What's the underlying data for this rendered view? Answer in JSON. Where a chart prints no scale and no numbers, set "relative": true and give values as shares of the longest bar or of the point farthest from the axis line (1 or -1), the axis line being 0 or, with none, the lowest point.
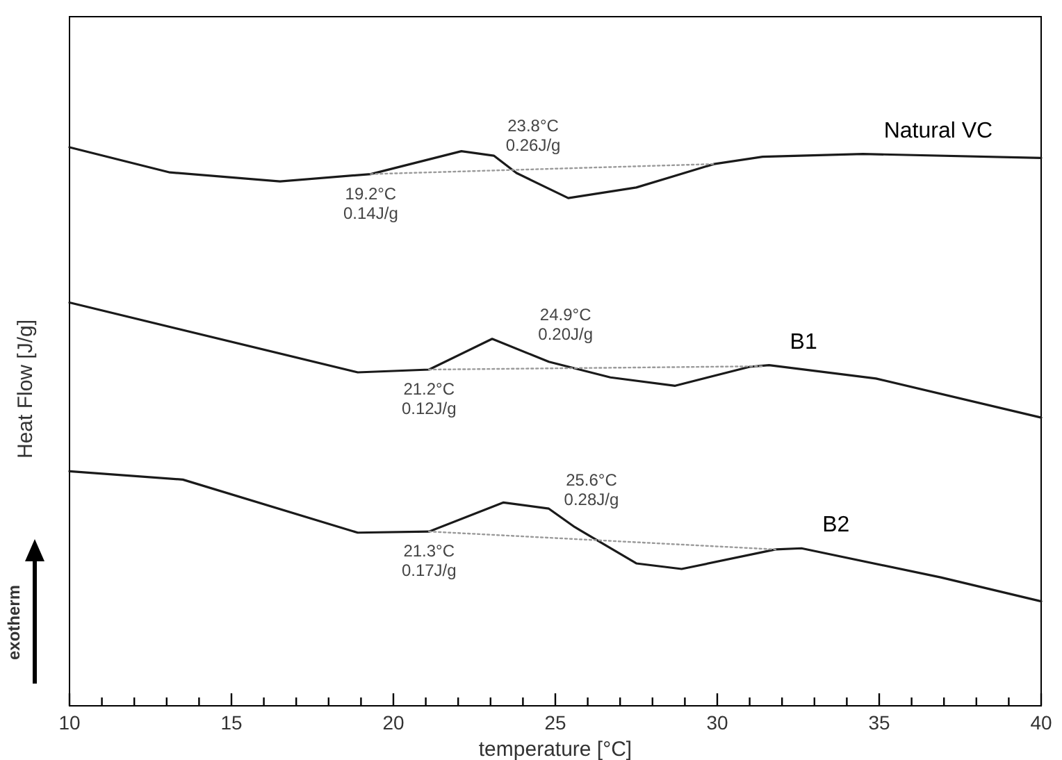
{
  "chart_data": {
    "type": "line",
    "relative": true,
    "xlabel": "temperature [°C]",
    "ylabel": "Heat Flow [J/g]",
    "xlim": [
      10,
      40
    ],
    "xticks": [
      10,
      {
        "value": 11,
        "label": null
      },
      {
        "value": 12,
        "label": null
      },
      {
        "value": 13,
        "label": null
      },
      {
        "value": 14,
        "label": null
      },
      15,
      {
        "value": 16,
        "label": null
      },
      {
        "value": 17,
        "label": null
      },
      {
        "value": 18,
        "label": null
      },
      {
        "value": 19,
        "label": null
      },
      20,
      {
        "value": 21,
        "label": null
      },
      {
        "value": 22,
        "label": null
      },
      {
        "value": 23,
        "label": null
      },
      {
        "value": 24,
        "label": null
      },
      25,
      {
        "value": 26,
        "label": null
      },
      {
        "value": 27,
        "label": null
      },
      {
        "value": 28,
        "label": null
      },
      {
        "value": 29,
        "label": null
      },
      30,
      {
        "value": 31,
        "label": null
      },
      {
        "value": 32,
        "label": null
      },
      {
        "value": 33,
        "label": null
      },
      {
        "value": 34,
        "label": null
      },
      35,
      {
        "value": 36,
        "label": null
      },
      {
        "value": 37,
        "label": null
      },
      {
        "value": 38,
        "label": null
      },
      {
        "value": 39,
        "label": null
      },
      40
    ],
    "grid": false,
    "marker": "none",
    "line_style": "solid",
    "series": [
      {
        "name": "Natural VC",
        "color": "#1a1a1a",
        "x": [
          10,
          13.1,
          16.5,
          19.3,
          22.1,
          23.1,
          23.8,
          25.4,
          27.5,
          29.9,
          31.4,
          34.5,
          40
        ],
        "values": [
          1.0,
          0.955,
          0.939,
          0.952,
          0.993,
          0.985,
          0.954,
          0.909,
          0.928,
          0.97,
          0.983,
          0.988,
          0.981
        ]
      },
      {
        "name": "B1",
        "color": "#1a1a1a",
        "x": [
          10,
          18.9,
          21.1,
          23.05,
          24.8,
          26.7,
          28.7,
          31.0,
          31.6,
          34.9,
          40
        ],
        "values": [
          0.722,
          0.597,
          0.602,
          0.657,
          0.616,
          0.588,
          0.573,
          0.607,
          0.61,
          0.586,
          0.516
        ]
      },
      {
        "name": "B2",
        "color": "#1a1a1a",
        "x": [
          10,
          13.5,
          18.9,
          21.1,
          23.4,
          24.8,
          25.6,
          27.5,
          28.9,
          31.8,
          32.6,
          36.9,
          40
        ],
        "values": [
          0.42,
          0.405,
          0.31,
          0.312,
          0.364,
          0.353,
          0.32,
          0.255,
          0.245,
          0.28,
          0.282,
          0.23,
          0.187
        ]
      },
      {
        "color": "#9a9a9a",
        "line_style": "dotted",
        "x": [
          19.3,
          29.9
        ],
        "values": [
          0.952,
          0.97
        ]
      },
      {
        "color": "#9a9a9a",
        "line_style": "dotted",
        "x": [
          21.1,
          31.4
        ],
        "values": [
          0.602,
          0.608
        ]
      },
      {
        "color": "#9a9a9a",
        "line_style": "dotted",
        "x": [
          21.1,
          31.8
        ],
        "values": [
          0.312,
          0.28
        ]
      }
    ],
    "annotations": [
      {
        "text": "19.2°C\n0.14J/g",
        "x": 19.3,
        "y": 0.952
      },
      {
        "text": "23.8°C\n0.26J/g",
        "x": 23.8,
        "y": 0.954
      },
      {
        "text": "21.2°C\n0.12J/g",
        "x": 21.1,
        "y": 0.602
      },
      {
        "text": "24.9°C\n0.20J/g",
        "x": 24.8,
        "y": 0.616
      },
      {
        "text": "21.3°C\n0.17J/g",
        "x": 21.1,
        "y": 0.312
      },
      {
        "text": "25.6°C\n0.28J/g",
        "x": 25.6,
        "y": 0.32
      },
      "exotherm"
    ]
  }
}
